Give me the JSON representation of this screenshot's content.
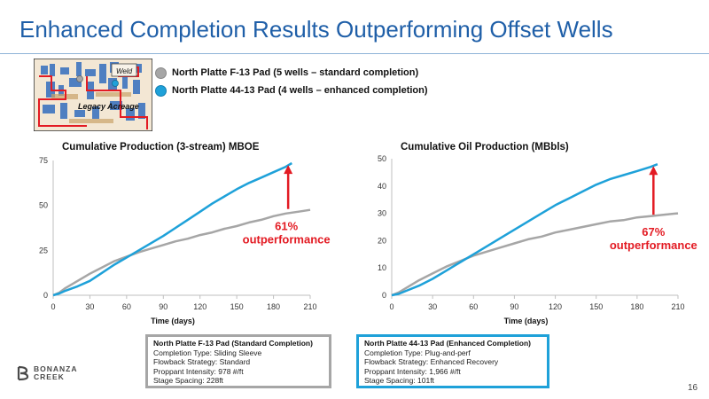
{
  "slide": {
    "title": "Enhanced Completion Results Outperforming Offset Wells",
    "page_number": "16"
  },
  "map": {
    "label": "Legacy Acreage",
    "inset_label": "Weld"
  },
  "legend": {
    "items": [
      {
        "label": "North Platte F-13 Pad (5 wells – standard completion)",
        "color": "#a6a6a6"
      },
      {
        "label": "North Platte 44-13 Pad (4 wells – enhanced completion)",
        "color": "#1ea1d9"
      }
    ]
  },
  "colors": {
    "standard": "#a6a6a6",
    "enhanced": "#1ea1d9",
    "arrow": "#e31b23",
    "title": "#1f5fa8"
  },
  "chart_data": [
    {
      "type": "line",
      "title": "Cumulative Production (3-stream) MBOE",
      "xlabel": "Time (days)",
      "ylabel": "",
      "xlim": [
        0,
        210
      ],
      "ylim": [
        0,
        75
      ],
      "xticks": [
        0,
        30,
        60,
        90,
        120,
        150,
        180,
        210
      ],
      "xtick_labels": [
        "0",
        "30",
        "60",
        "90",
        "120",
        "150",
        "180",
        "210"
      ],
      "yticks": [
        0,
        25,
        50,
        75
      ],
      "ytick_labels": [
        "0",
        "25",
        "50",
        "75"
      ],
      "grid": false,
      "series": [
        {
          "key": "standard",
          "x": [
            0,
            5,
            10,
            20,
            30,
            40,
            50,
            60,
            70,
            80,
            90,
            100,
            110,
            120,
            130,
            140,
            150,
            160,
            170,
            180,
            190,
            200,
            210
          ],
          "y": [
            0,
            1.5,
            4,
            8,
            12,
            15.5,
            19,
            21.5,
            24,
            26,
            28,
            30,
            31.5,
            33.5,
            35,
            37,
            38.5,
            40.5,
            42,
            44,
            45.5,
            46.5,
            47.5
          ]
        },
        {
          "key": "enhanced",
          "x": [
            0,
            5,
            10,
            20,
            30,
            40,
            50,
            60,
            70,
            80,
            90,
            100,
            110,
            120,
            130,
            140,
            150,
            160,
            170,
            180,
            190,
            195
          ],
          "y": [
            0,
            1,
            2.5,
            5,
            8,
            12.5,
            17,
            21,
            25,
            29,
            33,
            37.5,
            42,
            46.5,
            51,
            55,
            59,
            62.5,
            65.5,
            68.5,
            71.5,
            73.5
          ]
        }
      ],
      "annotations": [
        {
          "text_lines": [
            "61%",
            "outperformance"
          ],
          "arrow_x": 192,
          "arrow_y_from": 48,
          "arrow_y_to": 72
        }
      ]
    },
    {
      "type": "line",
      "title": "Cumulative Oil Production (MBbls)",
      "xlabel": "Time (days)",
      "ylabel": "",
      "xlim": [
        0,
        210
      ],
      "ylim": [
        0,
        50
      ],
      "xticks": [
        0,
        30,
        60,
        90,
        120,
        150,
        180,
        210
      ],
      "xtick_labels": [
        "0",
        "30",
        "60",
        "90",
        "120",
        "150",
        "180",
        "210"
      ],
      "yticks": [
        0,
        10,
        20,
        30,
        40,
        50
      ],
      "ytick_labels": [
        "0",
        "10",
        "20",
        "30",
        "40",
        "50"
      ],
      "grid": false,
      "series": [
        {
          "key": "standard",
          "x": [
            0,
            5,
            10,
            20,
            30,
            40,
            50,
            60,
            70,
            80,
            90,
            100,
            110,
            120,
            130,
            140,
            150,
            160,
            170,
            180,
            190,
            200,
            210
          ],
          "y": [
            0,
            1,
            2.5,
            5.5,
            8,
            10.5,
            12.5,
            14.5,
            16,
            17.5,
            19,
            20.5,
            21.5,
            23,
            24,
            25,
            26,
            27,
            27.5,
            28.5,
            29,
            29.5,
            30
          ]
        },
        {
          "key": "enhanced",
          "x": [
            0,
            5,
            10,
            20,
            30,
            40,
            50,
            60,
            70,
            80,
            90,
            100,
            110,
            120,
            130,
            140,
            150,
            160,
            170,
            180,
            190,
            195
          ],
          "y": [
            0,
            0.5,
            1.5,
            3.5,
            6,
            9,
            12,
            15,
            18,
            21,
            24,
            27,
            30,
            33,
            35.5,
            38,
            40.5,
            42.5,
            44,
            45.5,
            47,
            48
          ]
        }
      ],
      "annotations": [
        {
          "text_lines": [
            "67%",
            "outperformance"
          ],
          "arrow_x": 192,
          "arrow_y_from": 29.5,
          "arrow_y_to": 47
        }
      ]
    }
  ],
  "boxes": [
    {
      "key": "standard",
      "header": "North Platte F-13 Pad (Standard Completion)",
      "lines": [
        "Completion Type:  Sliding Sleeve",
        "Flowback Strategy:  Standard",
        "Proppant Intensity:  978 #/ft",
        "Stage Spacing:  228ft"
      ]
    },
    {
      "key": "enhanced",
      "header": "North Platte 44-13 Pad (Enhanced Completion)",
      "lines": [
        "Completion Type:  Plug-and-perf",
        "Flowback Strategy:  Enhanced Recovery",
        "Proppant Intensity:  1,966 #/ft",
        "Stage Spacing:  101ft"
      ]
    }
  ],
  "logo": {
    "line1": "BONANZA",
    "line2": "CREEK"
  }
}
